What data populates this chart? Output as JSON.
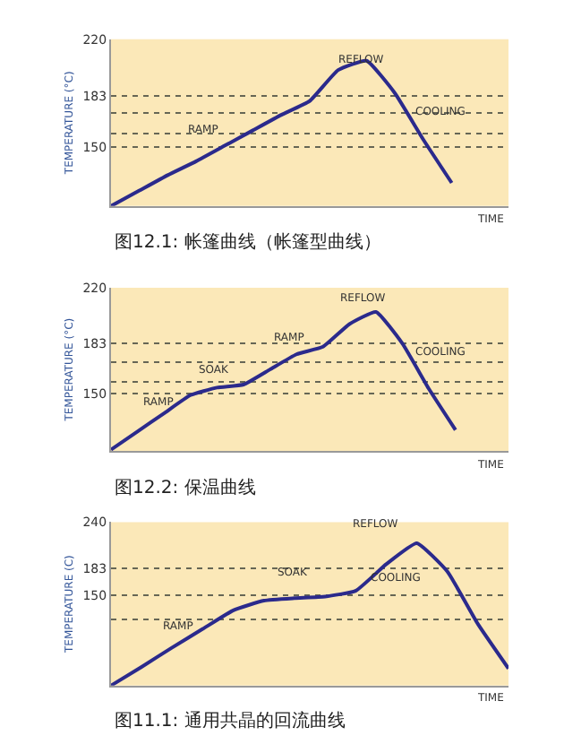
{
  "chart_data": [
    {
      "type": "line",
      "title": "图12.1: 帐篷曲线（帐篷型曲线）",
      "xlabel": "TIME",
      "ylabel": "TEMPERATURE (°C)",
      "tick_labels": "y",
      "grid": "y",
      "categories": [
        null,
        null,
        null,
        null,
        null,
        null,
        null,
        null,
        null,
        null,
        null,
        null,
        null,
        null,
        null
      ],
      "series": [
        {
          "color": "#2b2a8c",
          "values": [
            112,
            122,
            132,
            141,
            151,
            161,
            171,
            180,
            200,
            206,
            185,
            155,
            127,
            null,
            null
          ]
        }
      ],
      "ylim": [
        112,
        220
      ],
      "yticks": [
        150,
        {
          "value": 159,
          "label": null
        },
        {
          "value": 172,
          "label": null
        },
        183,
        220
      ],
      "annotations": [
        "REFLOW",
        "COOLING",
        "RAMP"
      ]
    },
    {
      "type": "line",
      "title": "图12.2: 保温曲线",
      "xlabel": "TIME",
      "ylabel": "TEMPERATURE (°C)",
      "tick_labels": "y",
      "grid": "y",
      "categories": [
        null,
        null,
        null,
        null,
        null,
        null,
        null,
        null,
        null,
        null,
        null,
        null,
        null,
        null,
        null,
        null
      ],
      "series": [
        {
          "color": "#2b2a8c",
          "values": [
            113,
            125,
            137,
            149,
            154,
            156,
            166,
            176,
            181,
            196,
            204,
            183,
            153,
            126,
            null,
            null
          ]
        }
      ],
      "ylim": [
        112,
        220
      ],
      "yticks": [
        150,
        {
          "value": 158,
          "label": null
        },
        {
          "value": 171,
          "label": null
        },
        183,
        220
      ],
      "annotations": [
        "REFLOW",
        "COOLING",
        "RAMP",
        "SOAK",
        "RAMP"
      ]
    },
    {
      "type": "line",
      "title": "图11.1: 通用共晶的回流曲线",
      "xlabel": "TIME",
      "ylabel": "TEMPERATURE (C)",
      "tick_labels": "y",
      "grid": "y",
      "categories": [
        null,
        null,
        null,
        null,
        null,
        null,
        null,
        null,
        null,
        null,
        null,
        null,
        null,
        null
      ],
      "series": [
        {
          "color": "#2b2a8c",
          "values": [
            38,
            61,
            85,
            108,
            131,
            143,
            146,
            148,
            155,
            188,
            214,
            179,
            114,
            59
          ]
        }
      ],
      "ylim": [
        38,
        240
      ],
      "yticks": [
        {
          "value": 120,
          "label": null
        },
        150,
        183,
        240
      ],
      "annotations": [
        "REFLOW",
        "COOLING",
        "SOAK",
        "RAMP"
      ]
    }
  ]
}
